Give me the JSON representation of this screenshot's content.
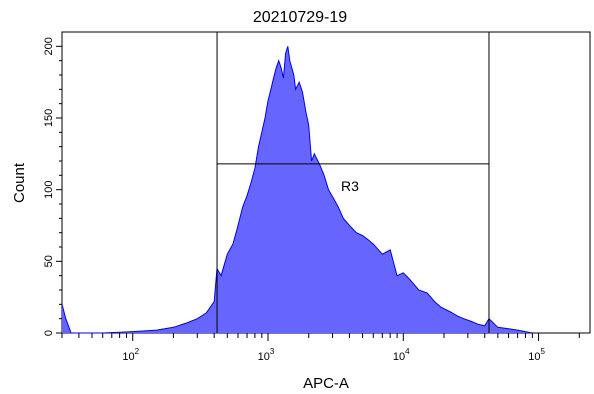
{
  "chart_data": {
    "type": "area",
    "title": "20210729-19",
    "xlabel": "APC-A",
    "ylabel": "Count",
    "x_scale": "log",
    "xlim": [
      30,
      240000
    ],
    "ylim": [
      0,
      210
    ],
    "y_ticks": [
      "0",
      "50",
      "100",
      "150",
      "200"
    ],
    "x_ticks": [
      {
        "base": "10",
        "exp": "2",
        "value": 100
      },
      {
        "base": "10",
        "exp": "3",
        "value": 1000
      },
      {
        "base": "10",
        "exp": "4",
        "value": 10000
      },
      {
        "base": "10",
        "exp": "5",
        "value": 100000
      }
    ],
    "fill_color": "#6666ff",
    "line_color": "#0000ee",
    "histogram": {
      "x": [
        30,
        32,
        35,
        40,
        60,
        100,
        150,
        200,
        250,
        300,
        350,
        400,
        420,
        450,
        500,
        550,
        600,
        650,
        700,
        750,
        800,
        850,
        900,
        950,
        1000,
        1050,
        1100,
        1150,
        1200,
        1250,
        1300,
        1350,
        1400,
        1450,
        1500,
        1550,
        1600,
        1700,
        1800,
        1900,
        2000,
        2100,
        2200,
        2400,
        2600,
        2800,
        3000,
        3300,
        3600,
        4000,
        4500,
        5000,
        5500,
        6000,
        7000,
        8000,
        9000,
        10000,
        11000,
        12000,
        13000,
        15000,
        17000,
        19000,
        22000,
        25000,
        28000,
        32000,
        36000,
        40000,
        43000,
        50000,
        60000,
        70000,
        80000,
        90000
      ],
      "y": [
        20,
        10,
        0,
        0,
        0,
        1,
        2,
        4,
        7,
        10,
        14,
        22,
        45,
        40,
        55,
        62,
        75,
        88,
        96,
        105,
        115,
        130,
        140,
        150,
        162,
        170,
        178,
        185,
        190,
        185,
        178,
        195,
        200,
        190,
        185,
        180,
        170,
        175,
        168,
        155,
        145,
        120,
        125,
        118,
        110,
        100,
        95,
        88,
        80,
        75,
        70,
        68,
        65,
        62,
        55,
        58,
        40,
        42,
        38,
        34,
        30,
        28,
        22,
        18,
        15,
        12,
        10,
        8,
        6,
        5,
        10,
        4,
        3,
        2,
        1,
        0
      ]
    },
    "gates": [
      {
        "name": "R3",
        "x_range": [
          420,
          43000
        ],
        "y_range": [
          0,
          210
        ],
        "split_count": 118
      }
    ]
  }
}
